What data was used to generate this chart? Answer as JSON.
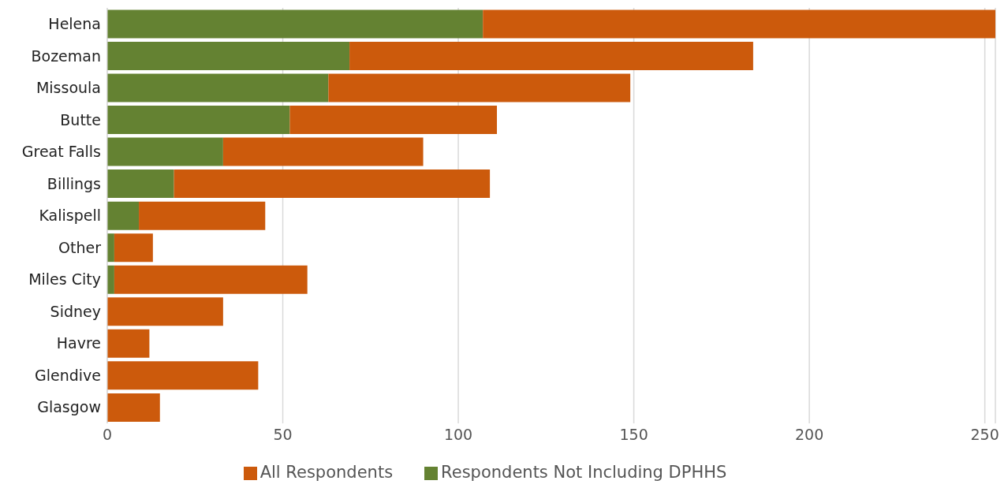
{
  "chart_data": {
    "type": "bar",
    "orientation": "horizontal",
    "stacked": true,
    "categories": [
      "Helena",
      "Bozeman",
      "Missoula",
      "Butte",
      "Great Falls",
      "Billings",
      "Kalispell",
      "Other",
      "Miles City",
      "Sidney",
      "Havre",
      "Glendive",
      "Glasgow"
    ],
    "series": [
      {
        "name": "Respondents Not Including DPHHS",
        "color": "#648232",
        "values": [
          107,
          69,
          63,
          52,
          33,
          19,
          9,
          2,
          2,
          0,
          0,
          0,
          0
        ]
      },
      {
        "name": "All Respondents",
        "color": "#cc5a0c",
        "values": [
          146,
          115,
          86,
          59,
          57,
          90,
          36,
          11,
          55,
          33,
          12,
          43,
          15
        ]
      }
    ],
    "xlim": [
      0,
      253
    ],
    "xticks": [
      0,
      50,
      100,
      150,
      200,
      250
    ],
    "grid": "x",
    "legend": "bottom"
  }
}
